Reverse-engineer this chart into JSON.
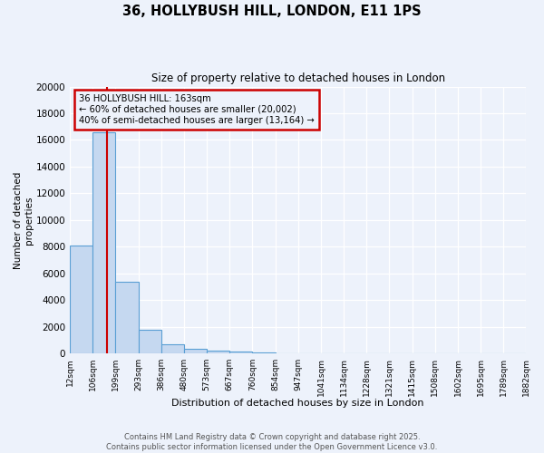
{
  "title1": "36, HOLLYBUSH HILL, LONDON, E11 1PS",
  "title2": "Size of property relative to detached houses in London",
  "xlabel": "Distribution of detached houses by size in London",
  "ylabel": "Number of detached\nproperties",
  "annotation_title": "36 HOLLYBUSH HILL: 163sqm",
  "annotation_line1": "← 60% of detached houses are smaller (20,002)",
  "annotation_line2": "40% of semi-detached houses are larger (13,164) →",
  "property_size": 163,
  "bar_edges": [
    12,
    106,
    199,
    293,
    386,
    480,
    573,
    667,
    760,
    854,
    947,
    1041,
    1134,
    1228,
    1321,
    1415,
    1508,
    1602,
    1695,
    1789,
    1882
  ],
  "bar_heights": [
    8100,
    16600,
    5400,
    1800,
    700,
    350,
    200,
    150,
    100,
    0,
    0,
    0,
    0,
    0,
    0,
    0,
    0,
    0,
    0,
    0
  ],
  "bar_color": "#c5d8f0",
  "bar_edge_color": "#5a9fd4",
  "vline_color": "#cc0000",
  "annotation_box_edge_color": "#cc0000",
  "background_color": "#edf2fb",
  "grid_color": "#ffffff",
  "ylim": [
    0,
    20000
  ],
  "yticks": [
    0,
    2000,
    4000,
    6000,
    8000,
    10000,
    12000,
    14000,
    16000,
    18000,
    20000
  ],
  "tick_labels": [
    "12sqm",
    "106sqm",
    "199sqm",
    "293sqm",
    "386sqm",
    "480sqm",
    "573sqm",
    "667sqm",
    "760sqm",
    "854sqm",
    "947sqm",
    "1041sqm",
    "1134sqm",
    "1228sqm",
    "1321sqm",
    "1415sqm",
    "1508sqm",
    "1602sqm",
    "1695sqm",
    "1789sqm",
    "1882sqm"
  ],
  "footer1": "Contains HM Land Registry data © Crown copyright and database right 2025.",
  "footer2": "Contains public sector information licensed under the Open Government Licence v3.0."
}
